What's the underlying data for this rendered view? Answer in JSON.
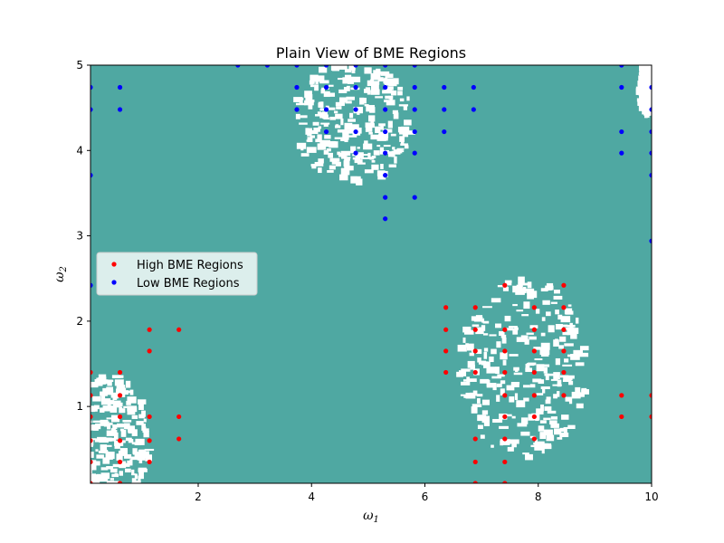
{
  "chart_data": {
    "type": "scatter",
    "title": "Plain View of BME Regions",
    "xlabel": "ω",
    "xlabel_sub": "1",
    "ylabel": "ω",
    "ylabel_sub": "2",
    "xlim": [
      0.1,
      10
    ],
    "ylim": [
      0.1,
      5
    ],
    "x_ticks": [
      2,
      4,
      6,
      8,
      10
    ],
    "y_ticks": [
      1,
      2,
      3,
      4,
      5
    ],
    "x_tick_labels": [
      "2",
      "4",
      "6",
      "8",
      "10"
    ],
    "y_tick_labels": [
      "1",
      "2",
      "3",
      "4",
      "5"
    ],
    "background_color": "#4FA8A2",
    "blob_color": "#FFFFFF",
    "white_regions": [
      {
        "cx": 0.45,
        "cy": 0.55,
        "rx": 0.7,
        "ry": 0.85
      },
      {
        "cx": 4.75,
        "cy": 4.35,
        "rx": 1.05,
        "ry": 0.75
      },
      {
        "cx": 7.75,
        "cy": 1.45,
        "rx": 1.15,
        "ry": 1.05
      },
      {
        "cx": 9.95,
        "cy": 4.75,
        "rx": 0.15,
        "ry": 0.35
      }
    ],
    "legend": {
      "placement": "center-left",
      "entries": [
        "High BME Regions",
        "Low BME Regions"
      ]
    },
    "series": [
      {
        "name": "High BME Regions",
        "color": "#FF0000",
        "points": [
          [
            0.1,
            0.1
          ],
          [
            0.1,
            0.35
          ],
          [
            0.1,
            0.6
          ],
          [
            0.1,
            0.88
          ],
          [
            0.1,
            1.13
          ],
          [
            0.1,
            1.4
          ],
          [
            0.62,
            0.1
          ],
          [
            0.62,
            0.35
          ],
          [
            0.62,
            0.6
          ],
          [
            0.62,
            0.88
          ],
          [
            0.62,
            1.13
          ],
          [
            0.62,
            1.4
          ],
          [
            1.14,
            0.35
          ],
          [
            1.14,
            0.6
          ],
          [
            1.14,
            0.88
          ],
          [
            1.14,
            1.65
          ],
          [
            1.14,
            1.9
          ],
          [
            1.66,
            0.62
          ],
          [
            1.66,
            0.88
          ],
          [
            1.66,
            1.9
          ],
          [
            6.37,
            1.4
          ],
          [
            6.37,
            1.65
          ],
          [
            6.37,
            1.9
          ],
          [
            6.37,
            2.16
          ],
          [
            6.89,
            0.1
          ],
          [
            6.89,
            0.35
          ],
          [
            6.89,
            0.62
          ],
          [
            6.89,
            1.4
          ],
          [
            6.89,
            1.65
          ],
          [
            6.89,
            1.9
          ],
          [
            6.89,
            2.16
          ],
          [
            7.41,
            0.1
          ],
          [
            7.41,
            0.35
          ],
          [
            7.41,
            0.62
          ],
          [
            7.41,
            0.88
          ],
          [
            7.41,
            1.13
          ],
          [
            7.41,
            1.4
          ],
          [
            7.41,
            1.65
          ],
          [
            7.41,
            1.9
          ],
          [
            7.41,
            2.42
          ],
          [
            7.93,
            0.62
          ],
          [
            7.93,
            0.88
          ],
          [
            7.93,
            1.13
          ],
          [
            7.93,
            1.4
          ],
          [
            7.93,
            1.65
          ],
          [
            7.93,
            1.9
          ],
          [
            7.93,
            2.16
          ],
          [
            8.45,
            1.13
          ],
          [
            8.45,
            1.4
          ],
          [
            8.45,
            1.65
          ],
          [
            8.45,
            1.9
          ],
          [
            8.45,
            2.16
          ],
          [
            8.45,
            2.42
          ],
          [
            9.47,
            0.88
          ],
          [
            9.47,
            1.13
          ],
          [
            10,
            0.88
          ],
          [
            10,
            1.13
          ]
        ]
      },
      {
        "name": "Low BME Regions",
        "color": "#0000FF",
        "points": [
          [
            0.1,
            2.42
          ],
          [
            0.1,
            3.71
          ],
          [
            0.1,
            4.48
          ],
          [
            0.1,
            4.74
          ],
          [
            0.62,
            4.48
          ],
          [
            0.62,
            4.74
          ],
          [
            2.7,
            5.0
          ],
          [
            3.22,
            5.0
          ],
          [
            3.74,
            4.48
          ],
          [
            3.74,
            4.74
          ],
          [
            3.74,
            5.0
          ],
          [
            4.26,
            4.22
          ],
          [
            4.26,
            4.48
          ],
          [
            4.26,
            4.74
          ],
          [
            4.26,
            5.0
          ],
          [
            4.78,
            3.97
          ],
          [
            4.78,
            4.22
          ],
          [
            4.78,
            4.48
          ],
          [
            4.78,
            4.74
          ],
          [
            4.78,
            5.0
          ],
          [
            5.3,
            3.2
          ],
          [
            5.3,
            3.45
          ],
          [
            5.3,
            3.71
          ],
          [
            5.3,
            3.97
          ],
          [
            5.3,
            4.22
          ],
          [
            5.3,
            4.48
          ],
          [
            5.3,
            4.74
          ],
          [
            5.3,
            5.0
          ],
          [
            5.82,
            3.45
          ],
          [
            5.82,
            3.97
          ],
          [
            5.82,
            4.22
          ],
          [
            5.82,
            4.48
          ],
          [
            5.82,
            4.74
          ],
          [
            5.82,
            5.0
          ],
          [
            6.34,
            4.22
          ],
          [
            6.34,
            4.48
          ],
          [
            6.34,
            4.74
          ],
          [
            6.86,
            4.48
          ],
          [
            6.86,
            4.74
          ],
          [
            9.47,
            3.97
          ],
          [
            9.47,
            4.22
          ],
          [
            9.47,
            4.74
          ],
          [
            9.47,
            5.0
          ],
          [
            10,
            2.94
          ],
          [
            10,
            3.71
          ],
          [
            10,
            3.97
          ],
          [
            10,
            4.22
          ],
          [
            10,
            4.48
          ],
          [
            10,
            4.74
          ]
        ]
      }
    ]
  }
}
